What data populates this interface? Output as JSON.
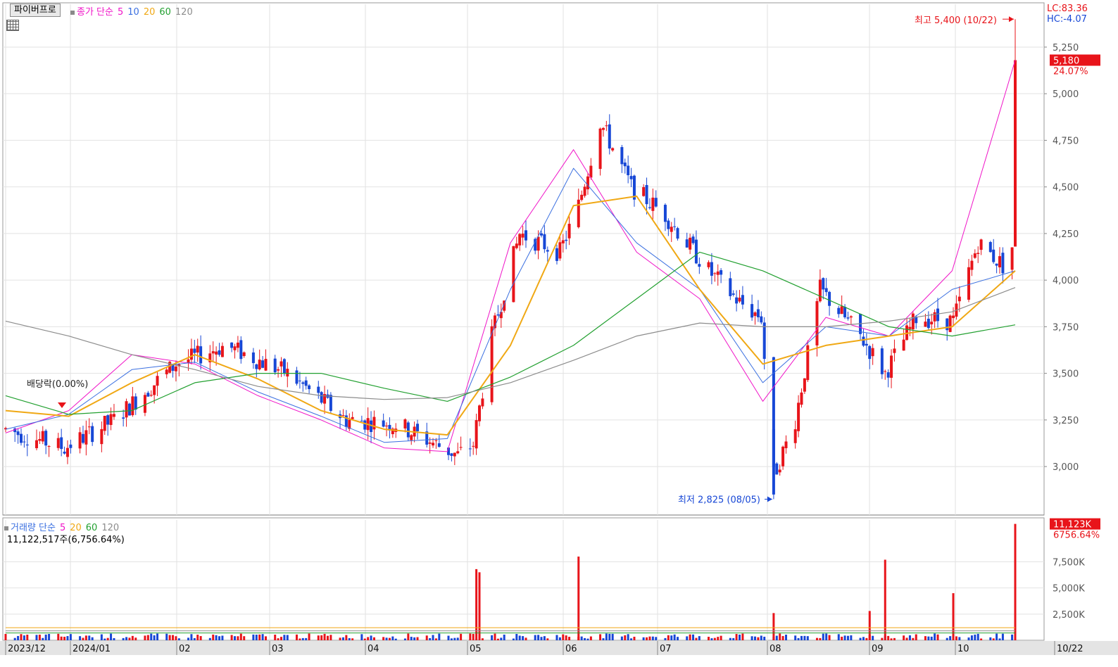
{
  "toolbar": {
    "button_label": "파이버프로"
  },
  "price_legend": {
    "label": "종가 단순",
    "ma": [
      "5",
      "10",
      "20",
      "60",
      "120"
    ]
  },
  "volume_legend": {
    "label": "거래량 단순",
    "ma": [
      "5",
      "20",
      "60",
      "120"
    ],
    "value_text": "11,122,517주(6,756.64%)"
  },
  "indicators": {
    "lc": "LC:83.36",
    "hc": "HC:-4.07"
  },
  "annotations": {
    "high": "최고 5,400 (10/22)",
    "low": "최저 2,825 (08/05)",
    "dividend": "배당락(0.00%)"
  },
  "current": {
    "price": "5,180",
    "change": "24.07%",
    "volume": "11,123K",
    "volume_change": "6756.64%"
  },
  "colors": {
    "up": "#e8141a",
    "down": "#1747d6",
    "ma5": "#f014c8",
    "ma10": "#3a6fe0",
    "ma20": "#f0a814",
    "ma60": "#22a030",
    "ma120": "#8c8c8c"
  },
  "chart_data": [
    {
      "type": "candlestick",
      "title": "",
      "y_ticks": [
        "5,250",
        "5,000",
        "4,750",
        "4,500",
        "4,250",
        "4,000",
        "3,750",
        "3,500",
        "3,250",
        "3,000"
      ],
      "ylim": [
        2740,
        5480
      ],
      "x_ticks": [
        "2023/12",
        "2024/01",
        "02",
        "03",
        "04",
        "05",
        "06",
        "07",
        "08",
        "09",
        "10",
        "10/22"
      ],
      "close_approx": [
        {
          "date": "2023-12",
          "value": 3150
        },
        {
          "date": "2024-01",
          "value": 3500
        },
        {
          "date": "2024-02",
          "value": 3620
        },
        {
          "date": "2024-03",
          "value": 3350
        },
        {
          "date": "2024-04",
          "value": 3080
        },
        {
          "date": "2024-05",
          "value": 4250
        },
        {
          "date": "2024-06",
          "value": 4600
        },
        {
          "date": "2024-07",
          "value": 3880
        },
        {
          "date": "2024-08",
          "value": 3450
        },
        {
          "date": "2024-09",
          "value": 3700
        },
        {
          "date": "2024-10",
          "value": 4100
        },
        {
          "date": "2024-10-22",
          "value": 5180
        }
      ],
      "high": 5400,
      "low": 2825,
      "series": [
        {
          "name": "5",
          "values": [
            3180,
            3300,
            3600,
            3550,
            3380,
            3250,
            3100,
            3080,
            4200,
            4700,
            4150,
            3900,
            3350,
            3800,
            3700,
            4050,
            5180
          ]
        },
        {
          "name": "10",
          "values": [
            3200,
            3280,
            3520,
            3560,
            3400,
            3270,
            3130,
            3150,
            3950,
            4600,
            4200,
            3950,
            3450,
            3750,
            3700,
            3950,
            4050
          ]
        },
        {
          "name": "20",
          "values": [
            3300,
            3270,
            3450,
            3600,
            3470,
            3300,
            3200,
            3170,
            3650,
            4400,
            4450,
            3950,
            3550,
            3650,
            3700,
            3750,
            4050
          ]
        },
        {
          "name": "60",
          "values": [
            3380,
            3280,
            3300,
            3450,
            3500,
            3500,
            3420,
            3350,
            3480,
            3650,
            3900,
            4150,
            4050,
            3900,
            3750,
            3700,
            3760
          ]
        },
        {
          "name": "120",
          "values": [
            3780,
            3700,
            3600,
            3520,
            3430,
            3380,
            3360,
            3370,
            3450,
            3570,
            3700,
            3770,
            3750,
            3750,
            3780,
            3830,
            3960
          ]
        }
      ]
    },
    {
      "type": "bar",
      "title": "",
      "y_ticks": [
        "7,500K",
        "5,000K",
        "2,500K"
      ],
      "ylim": [
        0,
        11500
      ],
      "spikes": [
        {
          "date": "2024-05-01",
          "value": 6800
        },
        {
          "date": "2024-05-02",
          "value": 6500
        },
        {
          "date": "2024-06-03",
          "value": 8000
        },
        {
          "date": "2024-08-05",
          "value": 2600
        },
        {
          "date": "2024-09-05",
          "value": 2800
        },
        {
          "date": "2024-09-10",
          "value": 7700
        },
        {
          "date": "2024-10-02",
          "value": 4500
        },
        {
          "date": "2024-10-22",
          "value": 11123
        }
      ]
    }
  ]
}
